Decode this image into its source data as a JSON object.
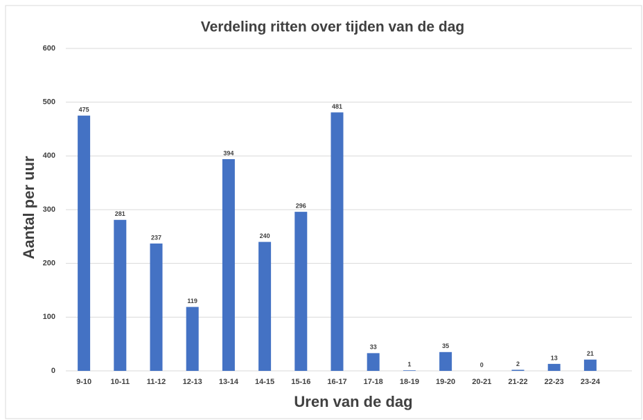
{
  "chart_data": {
    "type": "bar",
    "title": "Verdeling ritten over tijden van de dag",
    "x_label": "Uren van de dag",
    "y_label": "Aantal per uur",
    "categories": [
      "9-10",
      "10-11",
      "11-12",
      "12-13",
      "13-14",
      "14-15",
      "15-16",
      "16-17",
      "17-18",
      "18-19",
      "19-20",
      "20-21",
      "21-22",
      "22-23",
      "23-24"
    ],
    "values": [
      475,
      281,
      237,
      119,
      394,
      240,
      296,
      481,
      33,
      1,
      35,
      0,
      2,
      13,
      21
    ],
    "color": "#4472c4",
    "ylim": [
      0,
      600
    ],
    "yticks": [
      0,
      100,
      200,
      300,
      400,
      500,
      600
    ],
    "grid": true
  }
}
